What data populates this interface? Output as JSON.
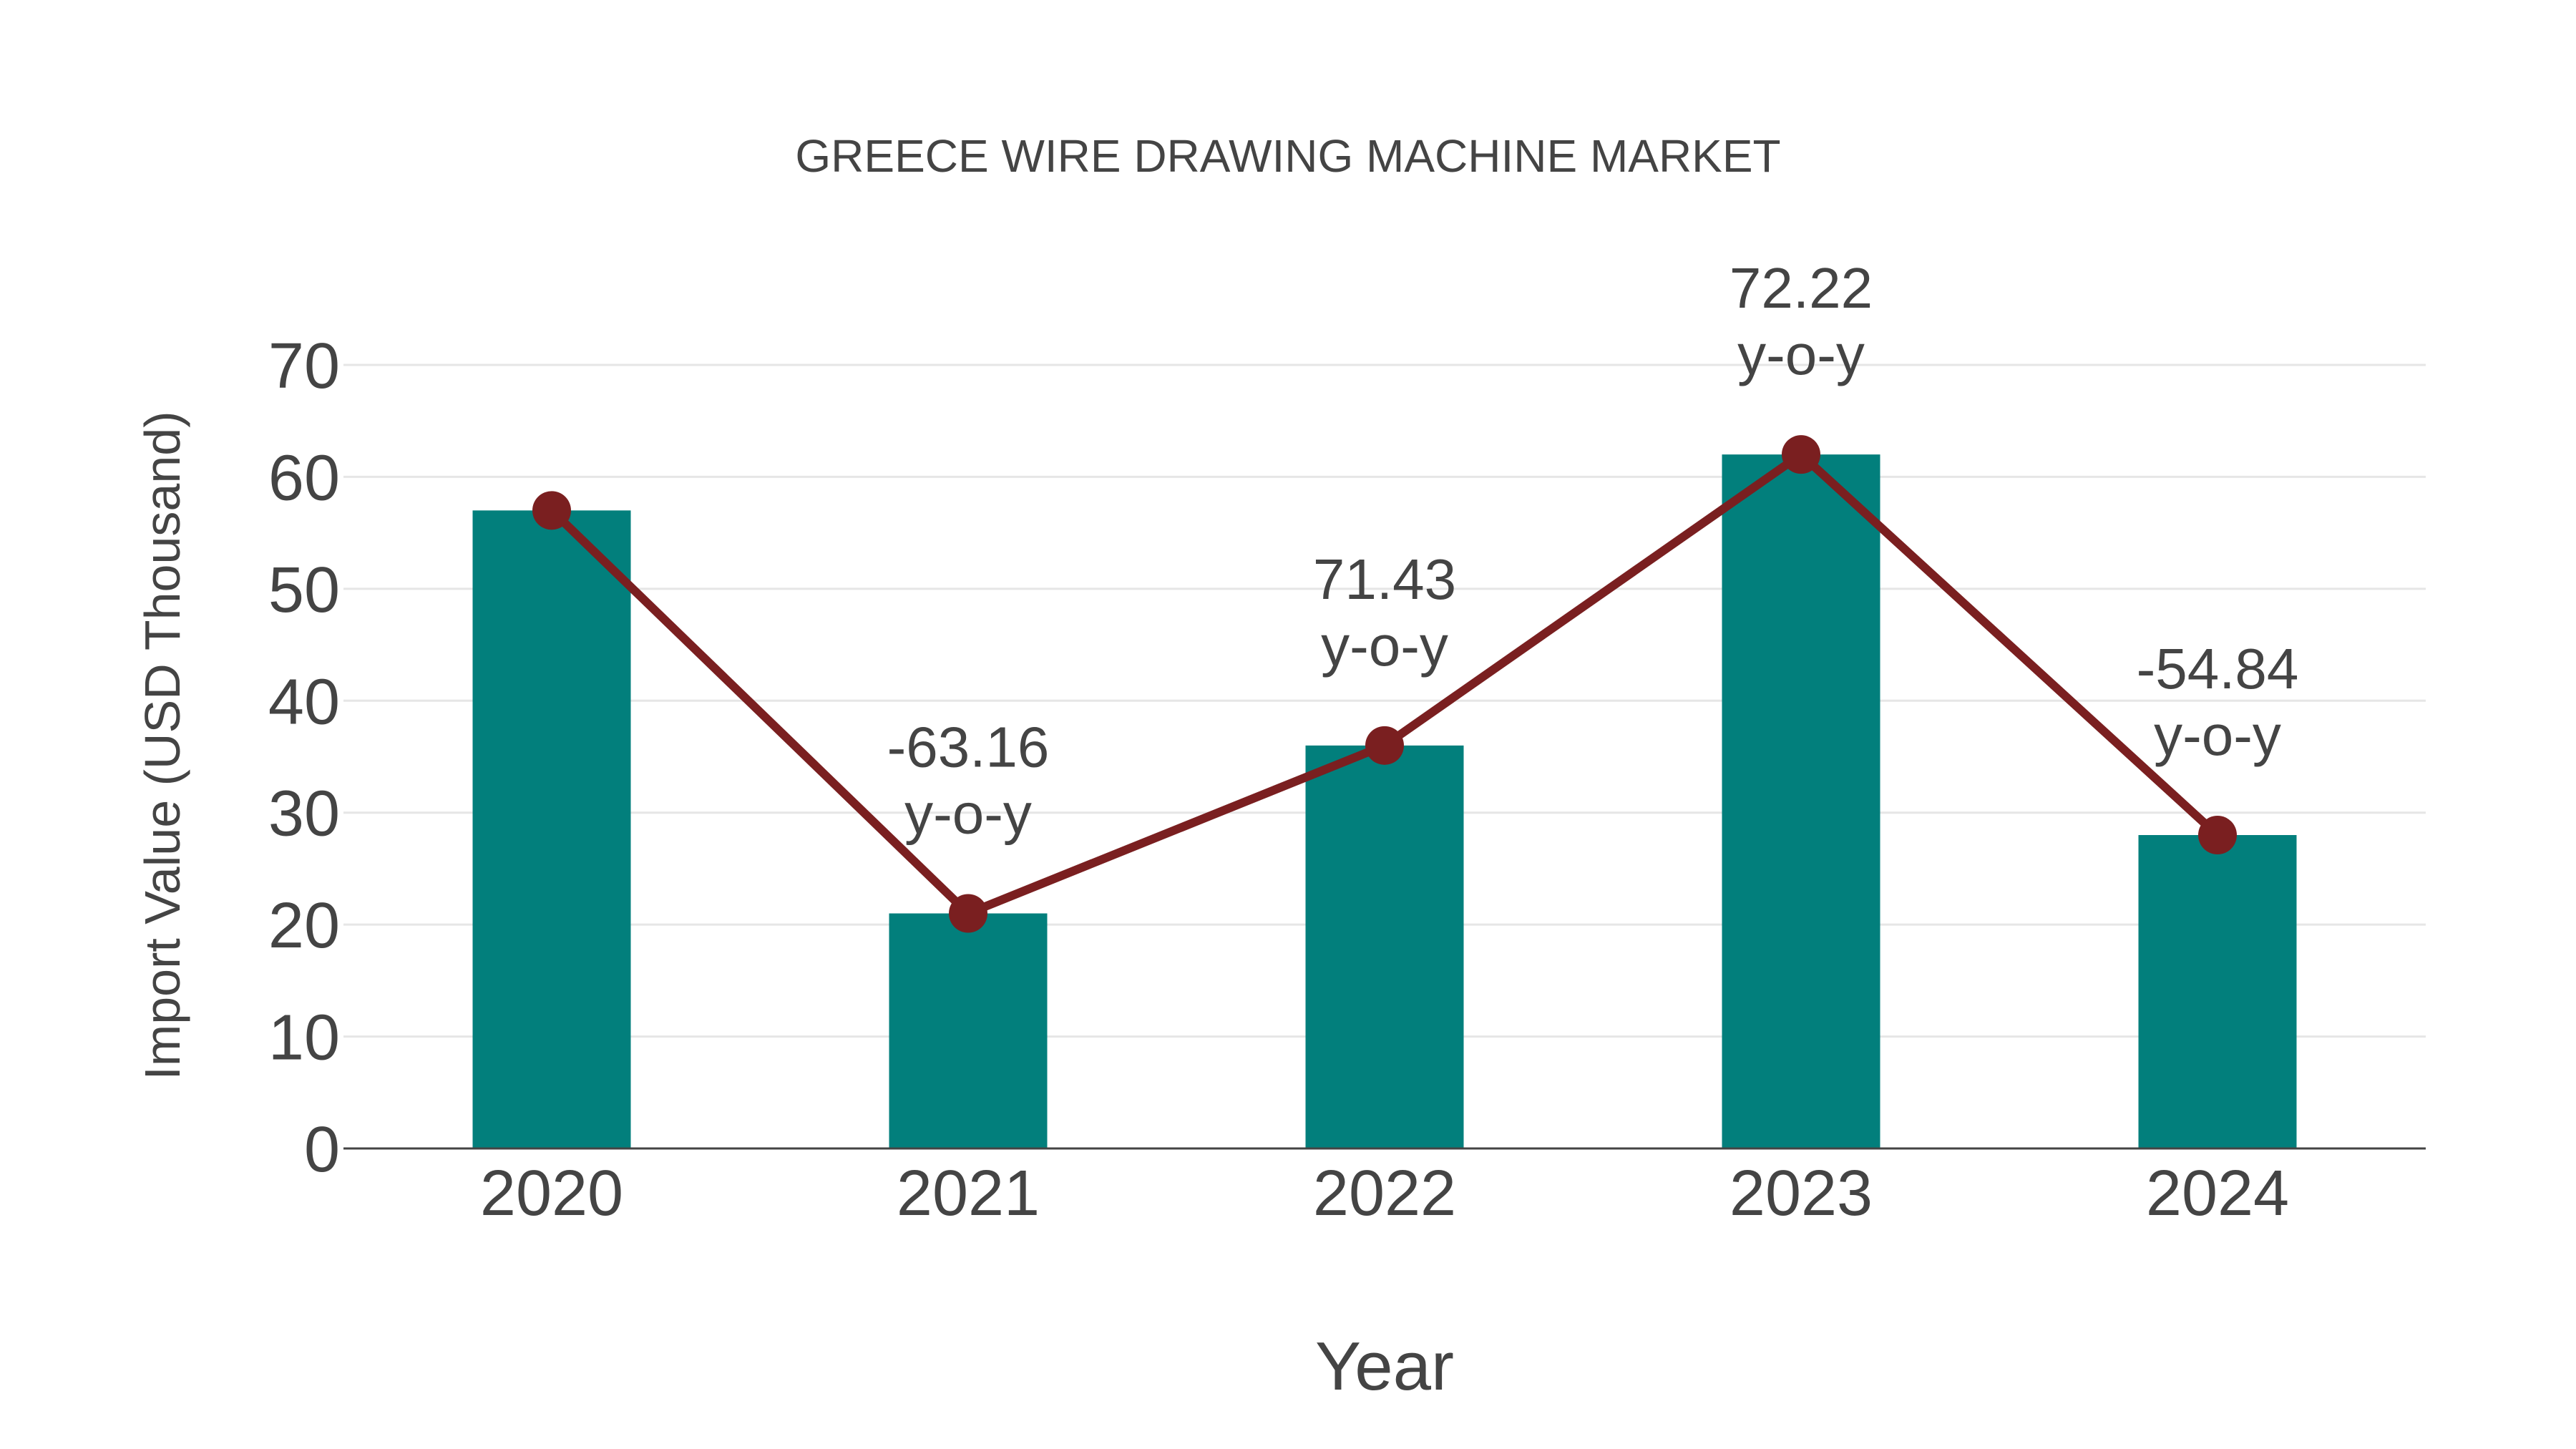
{
  "chart_data": {
    "type": "bar",
    "title": "GREECE WIRE DRAWING MACHINE MARKET",
    "xlabel": "Year",
    "ylabel": "Import Value (USD Thousand)",
    "categories": [
      "2020",
      "2021",
      "2022",
      "2023",
      "2024"
    ],
    "series": [
      {
        "name": "Import Value",
        "type": "bar",
        "color": "#027f7c",
        "values": [
          57,
          21,
          36,
          62,
          28
        ]
      },
      {
        "name": "Trend",
        "type": "line",
        "color": "#7a1f20",
        "values": [
          57,
          21,
          36,
          62,
          28
        ]
      }
    ],
    "annotations": [
      {
        "category": "2021",
        "value": "-63.16",
        "suffix": "y-o-y"
      },
      {
        "category": "2022",
        "value": "71.43",
        "suffix": "y-o-y"
      },
      {
        "category": "2023",
        "value": "72.22",
        "suffix": "y-o-y"
      },
      {
        "category": "2024",
        "value": "-54.84",
        "suffix": "y-o-y"
      }
    ],
    "yticks": [
      "0",
      "10",
      "20",
      "30",
      "40",
      "50",
      "60",
      "70"
    ],
    "ylim": [
      0,
      70
    ],
    "grid": true,
    "legend": "none"
  }
}
